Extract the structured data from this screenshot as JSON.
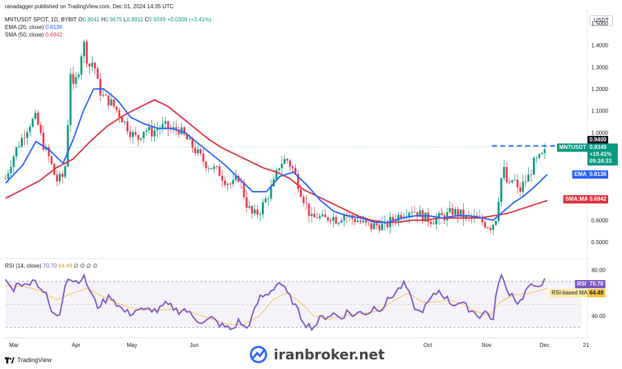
{
  "header": {
    "published": "ranadagger published on TradingView.com, Dec 01, 2024 14:35 UTC",
    "symbol": "MNTUSDT SPOT, 1D, BYBIT",
    "o_label": "O",
    "o_val": "0.9041",
    "h_label": "H",
    "h_val": "0.9675",
    "l_label": "L",
    "l_val": "0.8911",
    "c_label": "C",
    "c_val": "0.9349",
    "change": "+0.0308 (+3.41%)",
    "ema_label": "EMA (20, close)",
    "ema_val": "0.8136",
    "sma_label": "SMA (50, close)",
    "sma_val": "0.6942",
    "currency": "USDT"
  },
  "rsi_header": {
    "label": "RSI (14, close)",
    "rsi_val": "70.70",
    "ma_val": "64.49",
    "zeros": "∅ ∅ ∅ ∅"
  },
  "tags": {
    "level": "0.9400",
    "ticker": "MNTUSDT",
    "price": "0.9349",
    "pct": "+19.41%",
    "countdown": "09:24:33",
    "ema": "EMA",
    "ema_val": "0.8136",
    "sma": "SMA:MA",
    "sma_val": "0.6942",
    "rsi": "RSI",
    "rsi_val": "70.70",
    "rsi_ma": "RSI-based MA",
    "rsi_ma_val": "64.49"
  },
  "watermark": "iranbroker.net",
  "branding": "TradingView",
  "colors": {
    "up": "#089981",
    "down": "#f23645",
    "ema": "#2962ff",
    "sma": "#e0313f",
    "rsi": "#7e57c2",
    "rsi_ma": "#f5c242",
    "level": "#2962ff"
  },
  "chart_data": {
    "type": "candlestick",
    "x_ticks": [
      "Mar",
      "Apr",
      "May",
      "Jun",
      "Oct",
      "Nov",
      "Dec",
      "21"
    ],
    "price_ticks": [
      1.5,
      1.4,
      1.3,
      1.2,
      1.1,
      1.0,
      0.9,
      0.8,
      0.7,
      0.6,
      0.5
    ],
    "price_ylim": [
      0.44,
      1.55
    ],
    "resistance": 0.94,
    "rsi_ticks": [
      80,
      40
    ],
    "rsi_ylim": [
      22,
      88
    ],
    "rsi_band": [
      30,
      70
    ],
    "price_path": [
      [
        0,
        0.79
      ],
      [
        3,
        0.86
      ],
      [
        6,
        0.92
      ],
      [
        10,
        0.98
      ],
      [
        14,
        1.04
      ],
      [
        18,
        1.07
      ],
      [
        22,
        0.95
      ],
      [
        26,
        0.88
      ],
      [
        30,
        0.78
      ],
      [
        34,
        0.8
      ],
      [
        36,
        0.88
      ],
      [
        38,
        1.3
      ],
      [
        40,
        1.2
      ],
      [
        43,
        1.28
      ],
      [
        46,
        1.42
      ],
      [
        49,
        1.3
      ],
      [
        52,
        1.33
      ],
      [
        55,
        1.2
      ],
      [
        58,
        1.16
      ],
      [
        62,
        1.14
      ],
      [
        66,
        1.1
      ],
      [
        70,
        1.05
      ],
      [
        74,
        1.0
      ],
      [
        78,
        0.97
      ],
      [
        82,
        1.02
      ],
      [
        86,
        1.0
      ],
      [
        90,
        1.02
      ],
      [
        94,
        1.03
      ],
      [
        98,
        1.01
      ],
      [
        102,
        1.02
      ],
      [
        106,
        0.98
      ],
      [
        110,
        0.94
      ],
      [
        114,
        0.9
      ],
      [
        118,
        0.86
      ],
      [
        122,
        0.84
      ],
      [
        126,
        0.82
      ],
      [
        130,
        0.78
      ],
      [
        134,
        0.76
      ],
      [
        138,
        0.8
      ],
      [
        142,
        0.68
      ],
      [
        146,
        0.62
      ],
      [
        150,
        0.64
      ],
      [
        154,
        0.7
      ],
      [
        158,
        0.76
      ],
      [
        162,
        0.86
      ],
      [
        166,
        0.88
      ],
      [
        170,
        0.83
      ],
      [
        174,
        0.74
      ],
      [
        178,
        0.66
      ],
      [
        181,
        0.6
      ],
      [
        184,
        0.62
      ],
      [
        188,
        0.6
      ],
      [
        192,
        0.62
      ],
      [
        196,
        0.6
      ],
      [
        200,
        0.63
      ],
      [
        204,
        0.61
      ],
      [
        208,
        0.6
      ],
      [
        212,
        0.58
      ],
      [
        216,
        0.57
      ],
      [
        220,
        0.58
      ],
      [
        224,
        0.57
      ],
      [
        228,
        0.6
      ],
      [
        232,
        0.62
      ],
      [
        236,
        0.64
      ],
      [
        240,
        0.65
      ],
      [
        244,
        0.63
      ],
      [
        248,
        0.61
      ],
      [
        252,
        0.6
      ],
      [
        256,
        0.61
      ],
      [
        260,
        0.62
      ],
      [
        264,
        0.64
      ],
      [
        268,
        0.63
      ],
      [
        272,
        0.61
      ],
      [
        276,
        0.61
      ],
      [
        280,
        0.6
      ],
      [
        284,
        0.58
      ],
      [
        287,
        0.57
      ],
      [
        290,
        0.62
      ],
      [
        292,
        0.76
      ],
      [
        294,
        0.84
      ],
      [
        297,
        0.74
      ],
      [
        300,
        0.8
      ],
      [
        303,
        0.72
      ],
      [
        306,
        0.77
      ],
      [
        309,
        0.8
      ],
      [
        312,
        0.86
      ],
      [
        315,
        0.88
      ],
      [
        318,
        0.9
      ],
      [
        320,
        0.93
      ]
    ],
    "ema_path": [
      [
        0,
        0.77
      ],
      [
        10,
        0.85
      ],
      [
        18,
        0.96
      ],
      [
        26,
        0.92
      ],
      [
        34,
        0.86
      ],
      [
        40,
        0.97
      ],
      [
        46,
        1.1
      ],
      [
        52,
        1.2
      ],
      [
        58,
        1.2
      ],
      [
        66,
        1.15
      ],
      [
        74,
        1.07
      ],
      [
        82,
        1.04
      ],
      [
        90,
        1.02
      ],
      [
        98,
        1.02
      ],
      [
        106,
        1.0
      ],
      [
        114,
        0.95
      ],
      [
        122,
        0.9
      ],
      [
        130,
        0.85
      ],
      [
        138,
        0.79
      ],
      [
        146,
        0.73
      ],
      [
        154,
        0.73
      ],
      [
        162,
        0.8
      ],
      [
        170,
        0.82
      ],
      [
        178,
        0.76
      ],
      [
        186,
        0.69
      ],
      [
        194,
        0.64
      ],
      [
        202,
        0.62
      ],
      [
        210,
        0.61
      ],
      [
        218,
        0.59
      ],
      [
        226,
        0.59
      ],
      [
        234,
        0.61
      ],
      [
        242,
        0.62
      ],
      [
        250,
        0.62
      ],
      [
        258,
        0.61
      ],
      [
        266,
        0.62
      ],
      [
        274,
        0.62
      ],
      [
        282,
        0.61
      ],
      [
        288,
        0.6
      ],
      [
        294,
        0.64
      ],
      [
        300,
        0.68
      ],
      [
        306,
        0.71
      ],
      [
        312,
        0.75
      ],
      [
        320,
        0.81
      ]
    ],
    "sma_path": [
      [
        0,
        0.7
      ],
      [
        10,
        0.74
      ],
      [
        20,
        0.78
      ],
      [
        30,
        0.84
      ],
      [
        40,
        0.88
      ],
      [
        50,
        0.96
      ],
      [
        60,
        1.03
      ],
      [
        70,
        1.08
      ],
      [
        80,
        1.12
      ],
      [
        88,
        1.15
      ],
      [
        96,
        1.12
      ],
      [
        104,
        1.07
      ],
      [
        112,
        1.02
      ],
      [
        120,
        0.97
      ],
      [
        128,
        0.93
      ],
      [
        136,
        0.9
      ],
      [
        144,
        0.87
      ],
      [
        152,
        0.84
      ],
      [
        160,
        0.82
      ],
      [
        168,
        0.79
      ],
      [
        176,
        0.74
      ],
      [
        184,
        0.71
      ],
      [
        192,
        0.68
      ],
      [
        200,
        0.65
      ],
      [
        208,
        0.62
      ],
      [
        216,
        0.6
      ],
      [
        224,
        0.59
      ],
      [
        232,
        0.59
      ],
      [
        240,
        0.6
      ],
      [
        248,
        0.6
      ],
      [
        256,
        0.61
      ],
      [
        264,
        0.61
      ],
      [
        272,
        0.61
      ],
      [
        280,
        0.61
      ],
      [
        288,
        0.62
      ],
      [
        296,
        0.63
      ],
      [
        304,
        0.65
      ],
      [
        312,
        0.67
      ],
      [
        320,
        0.69
      ]
    ],
    "rsi_path": [
      [
        0,
        72
      ],
      [
        4,
        62
      ],
      [
        8,
        70
      ],
      [
        12,
        65
      ],
      [
        16,
        73
      ],
      [
        20,
        66
      ],
      [
        24,
        58
      ],
      [
        28,
        40
      ],
      [
        32,
        42
      ],
      [
        36,
        75
      ],
      [
        38,
        72
      ],
      [
        42,
        70
      ],
      [
        46,
        74
      ],
      [
        50,
        62
      ],
      [
        54,
        48
      ],
      [
        58,
        52
      ],
      [
        62,
        58
      ],
      [
        66,
        50
      ],
      [
        70,
        44
      ],
      [
        74,
        42
      ],
      [
        78,
        46
      ],
      [
        82,
        44
      ],
      [
        86,
        46
      ],
      [
        90,
        44
      ],
      [
        94,
        50
      ],
      [
        98,
        48
      ],
      [
        102,
        44
      ],
      [
        106,
        46
      ],
      [
        110,
        40
      ],
      [
        114,
        36
      ],
      [
        118,
        35
      ],
      [
        122,
        38
      ],
      [
        126,
        33
      ],
      [
        130,
        30
      ],
      [
        134,
        28
      ],
      [
        138,
        36
      ],
      [
        142,
        28
      ],
      [
        146,
        40
      ],
      [
        150,
        56
      ],
      [
        154,
        58
      ],
      [
        158,
        64
      ],
      [
        162,
        70
      ],
      [
        166,
        60
      ],
      [
        170,
        52
      ],
      [
        174,
        40
      ],
      [
        178,
        32
      ],
      [
        182,
        30
      ],
      [
        186,
        38
      ],
      [
        190,
        40
      ],
      [
        194,
        42
      ],
      [
        198,
        38
      ],
      [
        202,
        44
      ],
      [
        206,
        40
      ],
      [
        210,
        44
      ],
      [
        214,
        42
      ],
      [
        218,
        48
      ],
      [
        222,
        46
      ],
      [
        226,
        54
      ],
      [
        230,
        60
      ],
      [
        234,
        66
      ],
      [
        236,
        68
      ],
      [
        240,
        52
      ],
      [
        244,
        42
      ],
      [
        248,
        48
      ],
      [
        252,
        56
      ],
      [
        256,
        62
      ],
      [
        260,
        56
      ],
      [
        264,
        50
      ],
      [
        268,
        52
      ],
      [
        272,
        48
      ],
      [
        276,
        44
      ],
      [
        280,
        40
      ],
      [
        284,
        44
      ],
      [
        288,
        36
      ],
      [
        290,
        60
      ],
      [
        292,
        78
      ],
      [
        296,
        62
      ],
      [
        300,
        58
      ],
      [
        303,
        50
      ],
      [
        306,
        58
      ],
      [
        309,
        66
      ],
      [
        312,
        64
      ],
      [
        315,
        68
      ],
      [
        320,
        71
      ]
    ],
    "rsi_ma_path": [
      [
        0,
        66
      ],
      [
        10,
        66
      ],
      [
        20,
        62
      ],
      [
        30,
        54
      ],
      [
        40,
        60
      ],
      [
        48,
        64
      ],
      [
        56,
        58
      ],
      [
        64,
        52
      ],
      [
        72,
        48
      ],
      [
        80,
        45
      ],
      [
        90,
        45
      ],
      [
        100,
        46
      ],
      [
        110,
        43
      ],
      [
        120,
        38
      ],
      [
        130,
        33
      ],
      [
        140,
        32
      ],
      [
        150,
        40
      ],
      [
        158,
        54
      ],
      [
        166,
        60
      ],
      [
        174,
        52
      ],
      [
        182,
        40
      ],
      [
        190,
        37
      ],
      [
        200,
        40
      ],
      [
        210,
        42
      ],
      [
        220,
        44
      ],
      [
        230,
        54
      ],
      [
        238,
        60
      ],
      [
        246,
        52
      ],
      [
        254,
        52
      ],
      [
        262,
        54
      ],
      [
        270,
        50
      ],
      [
        278,
        44
      ],
      [
        286,
        40
      ],
      [
        292,
        52
      ],
      [
        300,
        58
      ],
      [
        310,
        60
      ],
      [
        320,
        64
      ]
    ]
  }
}
